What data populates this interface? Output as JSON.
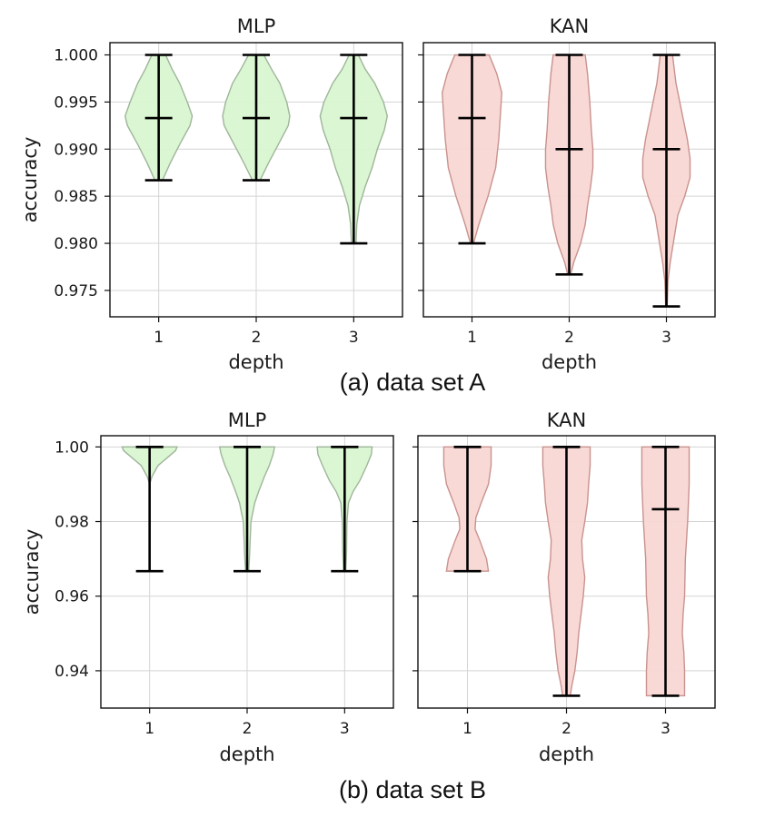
{
  "chart_data": [
    {
      "id": "A",
      "caption": "(a) data set A",
      "type": "violin",
      "ylabel": "accuracy",
      "ylim": [
        0.9722,
        1.0013
      ],
      "yticks": [
        1.0,
        0.995,
        0.99,
        0.985,
        0.98,
        0.975
      ],
      "ytick_labels": [
        "1.000",
        "0.995",
        "0.990",
        "0.985",
        "0.980",
        "0.975"
      ],
      "panels": [
        {
          "title": "MLP",
          "xlabel": "depth",
          "categories": [
            "1",
            "2",
            "3"
          ],
          "color": "#d8f5d0",
          "edge": "#9fb59a",
          "violins": [
            {
              "depth": "1",
              "min": 0.9867,
              "median": 0.9933,
              "max": 1.0,
              "profile": [
                [
                  0.9867,
                  0.1
                ],
                [
                  0.9885,
                  0.3
                ],
                [
                  0.9905,
                  0.55
                ],
                [
                  0.9925,
                  0.82
                ],
                [
                  0.9935,
                  0.88
                ],
                [
                  0.995,
                  0.75
                ],
                [
                  0.997,
                  0.55
                ],
                [
                  0.9985,
                  0.35
                ],
                [
                  1.0,
                  0.18
                ]
              ]
            },
            {
              "depth": "2",
              "min": 0.9867,
              "median": 0.9933,
              "max": 1.0,
              "profile": [
                [
                  0.9867,
                  0.1
                ],
                [
                  0.9885,
                  0.32
                ],
                [
                  0.9905,
                  0.58
                ],
                [
                  0.9925,
                  0.84
                ],
                [
                  0.9935,
                  0.88
                ],
                [
                  0.995,
                  0.8
                ],
                [
                  0.997,
                  0.62
                ],
                [
                  0.9985,
                  0.4
                ],
                [
                  1.0,
                  0.2
                ]
              ]
            },
            {
              "depth": "3",
              "min": 0.98,
              "median": 0.9933,
              "max": 1.0,
              "profile": [
                [
                  0.98,
                  0.06
                ],
                [
                  0.982,
                  0.08
                ],
                [
                  0.984,
                  0.15
                ],
                [
                  0.986,
                  0.3
                ],
                [
                  0.988,
                  0.48
                ],
                [
                  0.99,
                  0.62
                ],
                [
                  0.992,
                  0.8
                ],
                [
                  0.9935,
                  0.88
                ],
                [
                  0.995,
                  0.78
                ],
                [
                  0.997,
                  0.55
                ],
                [
                  0.9985,
                  0.3
                ],
                [
                  1.0,
                  0.12
                ]
              ]
            }
          ]
        },
        {
          "title": "KAN",
          "xlabel": "depth",
          "categories": [
            "1",
            "2",
            "3"
          ],
          "color": "#f8d7d4",
          "edge": "#c9928e",
          "violins": [
            {
              "depth": "1",
              "min": 0.98,
              "median": 0.9933,
              "max": 1.0,
              "profile": [
                [
                  0.98,
                  0.04
                ],
                [
                  0.982,
                  0.18
                ],
                [
                  0.985,
                  0.42
                ],
                [
                  0.988,
                  0.62
                ],
                [
                  0.991,
                  0.7
                ],
                [
                  0.994,
                  0.75
                ],
                [
                  0.996,
                  0.78
                ],
                [
                  0.998,
                  0.65
                ],
                [
                  1.0,
                  0.45
                ]
              ]
            },
            {
              "depth": "2",
              "min": 0.9767,
              "median": 0.99,
              "max": 1.0,
              "profile": [
                [
                  0.9767,
                  0.04
                ],
                [
                  0.978,
                  0.12
                ],
                [
                  0.98,
                  0.3
                ],
                [
                  0.982,
                  0.42
                ],
                [
                  0.984,
                  0.48
                ],
                [
                  0.986,
                  0.56
                ],
                [
                  0.988,
                  0.62
                ],
                [
                  0.99,
                  0.62
                ],
                [
                  0.992,
                  0.58
                ],
                [
                  0.995,
                  0.54
                ],
                [
                  0.998,
                  0.48
                ],
                [
                  1.0,
                  0.42
                ]
              ]
            },
            {
              "depth": "3",
              "min": 0.9733,
              "median": 0.99,
              "max": 1.0,
              "profile": [
                [
                  0.9733,
                  0.02
                ],
                [
                  0.976,
                  0.04
                ],
                [
                  0.978,
                  0.1
                ],
                [
                  0.98,
                  0.18
                ],
                [
                  0.983,
                  0.3
                ],
                [
                  0.985,
                  0.48
                ],
                [
                  0.987,
                  0.62
                ],
                [
                  0.989,
                  0.62
                ],
                [
                  0.991,
                  0.55
                ],
                [
                  0.993,
                  0.45
                ],
                [
                  0.995,
                  0.35
                ],
                [
                  0.997,
                  0.25
                ],
                [
                  1.0,
                  0.16
                ]
              ]
            }
          ]
        }
      ]
    },
    {
      "id": "B",
      "caption": "(b) data set B",
      "type": "violin",
      "ylabel": "accuracy",
      "ylim": [
        0.93,
        1.003
      ],
      "yticks": [
        1.0,
        0.98,
        0.96,
        0.94
      ],
      "ytick_labels": [
        "1.00",
        "0.98",
        "0.96",
        "0.94"
      ],
      "panels": [
        {
          "title": "MLP",
          "xlabel": "depth",
          "categories": [
            "1",
            "2",
            "3"
          ],
          "color": "#d8f5d0",
          "edge": "#9fb59a",
          "violins": [
            {
              "depth": "1",
              "min": 0.9667,
              "median": 1.0,
              "max": 1.0,
              "profile": [
                [
                  0.9667,
                  0.0
                ],
                [
                  0.99,
                  0.0
                ],
                [
                  0.992,
                  0.06
                ],
                [
                  0.995,
                  0.22
                ],
                [
                  0.997,
                  0.45
                ],
                [
                  0.999,
                  0.68
                ],
                [
                  1.0,
                  0.72
                ]
              ]
            },
            {
              "depth": "2",
              "min": 0.9667,
              "median": 1.0,
              "max": 1.0,
              "profile": [
                [
                  0.9667,
                  0.04
                ],
                [
                  0.97,
                  0.06
                ],
                [
                  0.975,
                  0.08
                ],
                [
                  0.98,
                  0.1
                ],
                [
                  0.985,
                  0.2
                ],
                [
                  0.988,
                  0.3
                ],
                [
                  0.992,
                  0.45
                ],
                [
                  0.995,
                  0.58
                ],
                [
                  0.998,
                  0.68
                ],
                [
                  1.0,
                  0.72
                ]
              ]
            },
            {
              "depth": "3",
              "min": 0.9667,
              "median": 1.0,
              "max": 1.0,
              "profile": [
                [
                  0.9667,
                  0.03
                ],
                [
                  0.972,
                  0.05
                ],
                [
                  0.98,
                  0.06
                ],
                [
                  0.985,
                  0.1
                ],
                [
                  0.988,
                  0.22
                ],
                [
                  0.991,
                  0.4
                ],
                [
                  0.995,
                  0.58
                ],
                [
                  0.998,
                  0.7
                ],
                [
                  1.0,
                  0.72
                ]
              ]
            }
          ]
        },
        {
          "title": "KAN",
          "xlabel": "depth",
          "categories": [
            "1",
            "2",
            "3"
          ],
          "color": "#f8d7d4",
          "edge": "#c9928e",
          "violins": [
            {
              "depth": "1",
              "min": 0.9667,
              "median": 1.0,
              "max": 1.0,
              "profile": [
                [
                  0.9667,
                  0.55
                ],
                [
                  0.97,
                  0.5
                ],
                [
                  0.975,
                  0.32
                ],
                [
                  0.978,
                  0.2
                ],
                [
                  0.981,
                  0.22
                ],
                [
                  0.985,
                  0.36
                ],
                [
                  0.99,
                  0.55
                ],
                [
                  0.995,
                  0.62
                ],
                [
                  1.0,
                  0.62
                ]
              ]
            },
            {
              "depth": "2",
              "min": 0.9333,
              "median": 1.0,
              "max": 1.0,
              "profile": [
                [
                  0.9333,
                  0.1
                ],
                [
                  0.936,
                  0.14
                ],
                [
                  0.94,
                  0.22
                ],
                [
                  0.945,
                  0.28
                ],
                [
                  0.95,
                  0.32
                ],
                [
                  0.955,
                  0.38
                ],
                [
                  0.96,
                  0.44
                ],
                [
                  0.965,
                  0.48
                ],
                [
                  0.97,
                  0.42
                ],
                [
                  0.975,
                  0.4
                ],
                [
                  0.98,
                  0.48
                ],
                [
                  0.985,
                  0.55
                ],
                [
                  0.99,
                  0.58
                ],
                [
                  0.995,
                  0.62
                ],
                [
                  1.0,
                  0.62
                ]
              ]
            },
            {
              "depth": "3",
              "min": 0.9333,
              "median": 0.9833,
              "max": 1.0,
              "profile": [
                [
                  0.9333,
                  0.5
                ],
                [
                  0.94,
                  0.5
                ],
                [
                  0.945,
                  0.48
                ],
                [
                  0.95,
                  0.44
                ],
                [
                  0.955,
                  0.46
                ],
                [
                  0.96,
                  0.5
                ],
                [
                  0.97,
                  0.52
                ],
                [
                  0.98,
                  0.58
                ],
                [
                  0.99,
                  0.62
                ],
                [
                  1.0,
                  0.62
                ]
              ]
            }
          ]
        }
      ]
    }
  ]
}
